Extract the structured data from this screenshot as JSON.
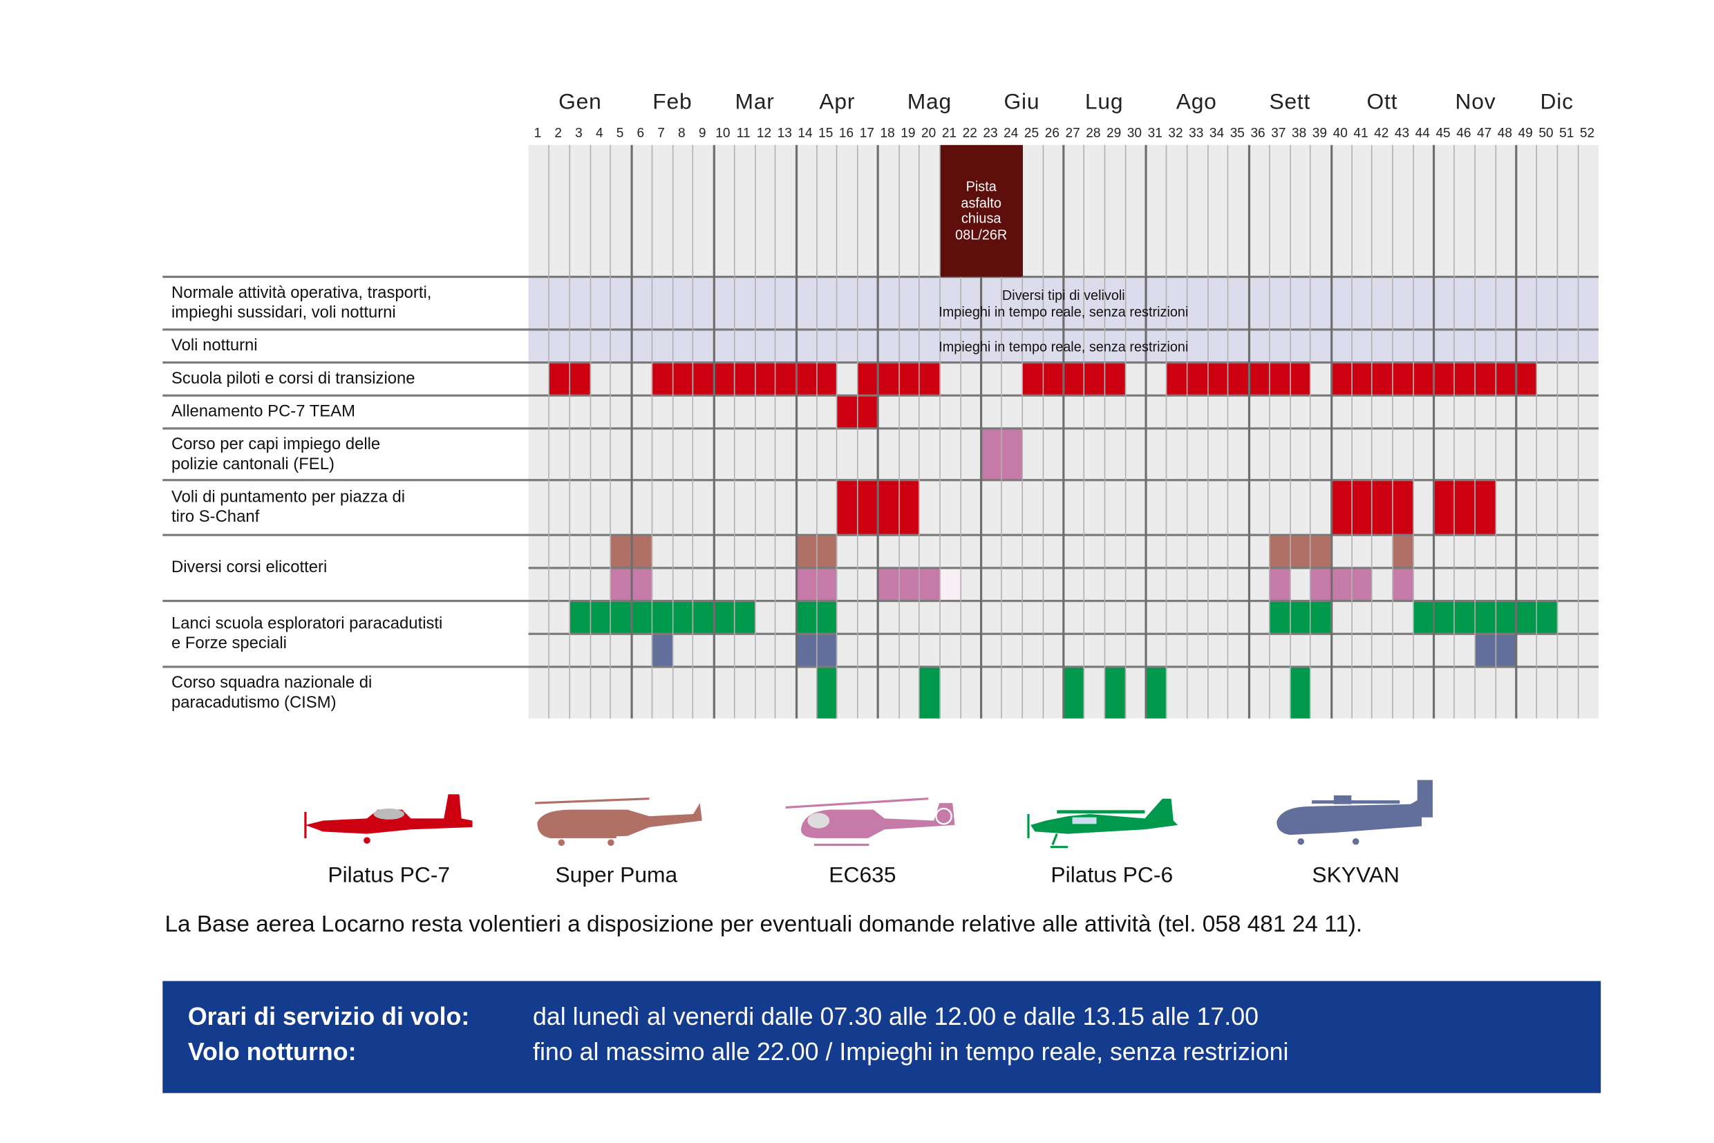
{
  "colors": {
    "pc7": "#cc0010",
    "super_puma": "#b07066",
    "ec635": "#c57aa7",
    "ec635_light": "#f8eef4",
    "pc6": "#00984a",
    "skyvan": "#636f9b",
    "band": "#dcdcec",
    "closure": "#5e0f0c",
    "footer": "#143c8e"
  },
  "chart_data": {
    "type": "table",
    "title": "",
    "months": [
      {
        "label": "Gen"
      },
      {
        "label": "Feb"
      },
      {
        "label": "Mar"
      },
      {
        "label": "Apr"
      },
      {
        "label": "Mag"
      },
      {
        "label": "Giu"
      },
      {
        "label": "Lug"
      },
      {
        "label": "Ago"
      },
      {
        "label": "Sett"
      },
      {
        "label": "Ott"
      },
      {
        "label": "Nov"
      },
      {
        "label": "Dic"
      }
    ],
    "month_end_weeks": [
      5,
      9,
      13,
      17,
      22,
      26,
      30,
      35,
      39,
      44,
      48
    ],
    "weeks": [
      1,
      2,
      3,
      4,
      5,
      6,
      7,
      8,
      9,
      10,
      11,
      12,
      13,
      14,
      15,
      16,
      17,
      18,
      19,
      20,
      21,
      22,
      23,
      24,
      25,
      26,
      27,
      28,
      29,
      30,
      31,
      32,
      33,
      34,
      35,
      36,
      37,
      38,
      39,
      40,
      41,
      42,
      43,
      44,
      45,
      46,
      47,
      48,
      49,
      50,
      51,
      52
    ],
    "closure": {
      "label": "Pista asfalto chiusa 08L/26R",
      "lines": [
        "Pista",
        "asfalto",
        "chiusa",
        "08L/26R"
      ],
      "weeks": [
        21,
        22,
        23,
        24
      ]
    },
    "rows": [
      {
        "label_lines": [
          "Normale attività operativa, trasporti,",
          "impieghi sussidari, voli notturni"
        ],
        "band": true,
        "band_text": [
          "Diversi tipi di velivoli",
          "Impieghi in tempo reale, senza restrizioni"
        ],
        "subrows": []
      },
      {
        "label_lines": [
          "Voli notturni"
        ],
        "band": true,
        "band_text": [
          "Impieghi in tempo reale, senza restrizioni"
        ],
        "subrows": []
      },
      {
        "label_lines": [
          "Scuola piloti e corsi di transizione"
        ],
        "band": false,
        "subrows": [
          [
            {
              "aircraft": "pc7",
              "weeks": [
                2,
                3,
                7,
                8,
                9,
                10,
                11,
                12,
                13,
                14,
                15,
                17,
                18,
                19,
                20,
                25,
                26,
                27,
                28,
                29,
                32,
                33,
                34,
                35,
                36,
                37,
                38,
                40,
                41,
                42,
                43,
                44,
                45,
                46,
                47,
                48,
                49
              ]
            }
          ]
        ]
      },
      {
        "label_lines": [
          "Allenamento PC-7 TEAM"
        ],
        "band": false,
        "subrows": [
          [
            {
              "aircraft": "pc7",
              "weeks": [
                16,
                17
              ]
            }
          ]
        ]
      },
      {
        "label_lines": [
          "Corso per capi impiego delle",
          "polizie cantonali (FEL)"
        ],
        "band": false,
        "subrows": [
          [
            {
              "aircraft": "ec635",
              "weeks": [
                23,
                24
              ]
            }
          ]
        ]
      },
      {
        "label_lines": [
          "Voli di puntamento per piazza di",
          "tiro S-Chanf"
        ],
        "band": false,
        "subrows": [
          [
            {
              "aircraft": "pc7",
              "weeks": [
                16,
                17,
                18,
                19,
                40,
                41,
                42,
                43,
                45,
                46,
                47
              ]
            }
          ]
        ]
      },
      {
        "label_lines": [
          "Diversi corsi elicotteri"
        ],
        "band": false,
        "subrows": [
          [
            {
              "aircraft": "super_puma",
              "weeks": [
                5,
                6,
                14,
                15,
                37,
                38,
                39,
                43
              ]
            }
          ],
          [
            {
              "aircraft": "ec635",
              "weeks": [
                5,
                6,
                14,
                15,
                18,
                19,
                20,
                37,
                39,
                40,
                41,
                43
              ]
            },
            {
              "aircraft": "ec635_light",
              "weeks": [
                21
              ]
            }
          ]
        ]
      },
      {
        "label_lines": [
          "Lanci scuola esploratori paracadutisti",
          "e Forze speciali"
        ],
        "band": false,
        "subrows": [
          [
            {
              "aircraft": "pc6",
              "weeks": [
                3,
                4,
                5,
                6,
                7,
                8,
                9,
                10,
                11,
                14,
                15,
                37,
                38,
                39,
                44,
                45,
                46,
                47,
                48,
                49,
                50
              ]
            }
          ],
          [
            {
              "aircraft": "skyvan",
              "weeks": [
                7,
                14,
                15,
                47,
                48
              ]
            }
          ]
        ]
      },
      {
        "label_lines": [
          "Corso squadra nazionale di",
          "paracadutismo (CISM)"
        ],
        "band": false,
        "subrows": [
          [
            {
              "aircraft": "pc6",
              "weeks": [
                15,
                20,
                27,
                29,
                31,
                38
              ]
            }
          ]
        ]
      }
    ]
  },
  "legend": [
    {
      "key": "pc7",
      "label": "Pilatus PC-7"
    },
    {
      "key": "super_puma",
      "label": "Super Puma"
    },
    {
      "key": "ec635",
      "label": "EC635"
    },
    {
      "key": "pc6",
      "label": "Pilatus PC-6"
    },
    {
      "key": "skyvan",
      "label": "SKYVAN"
    }
  ],
  "info": "La Base aerea Locarno resta volentieri a disposizione per eventuali domande relative alle attività (tel. 058 481 24 11).",
  "footer": {
    "service_label": "Orari di servizio di volo:",
    "service_value": "dal lunedì al venerdi dalle 07.30 alle 12.00 e dalle 13.15 alle 17.00",
    "night_label": "Volo notturno:",
    "night_value": "fino al massimo alle 22.00 / Impieghi in tempo reale, senza restrizioni"
  }
}
